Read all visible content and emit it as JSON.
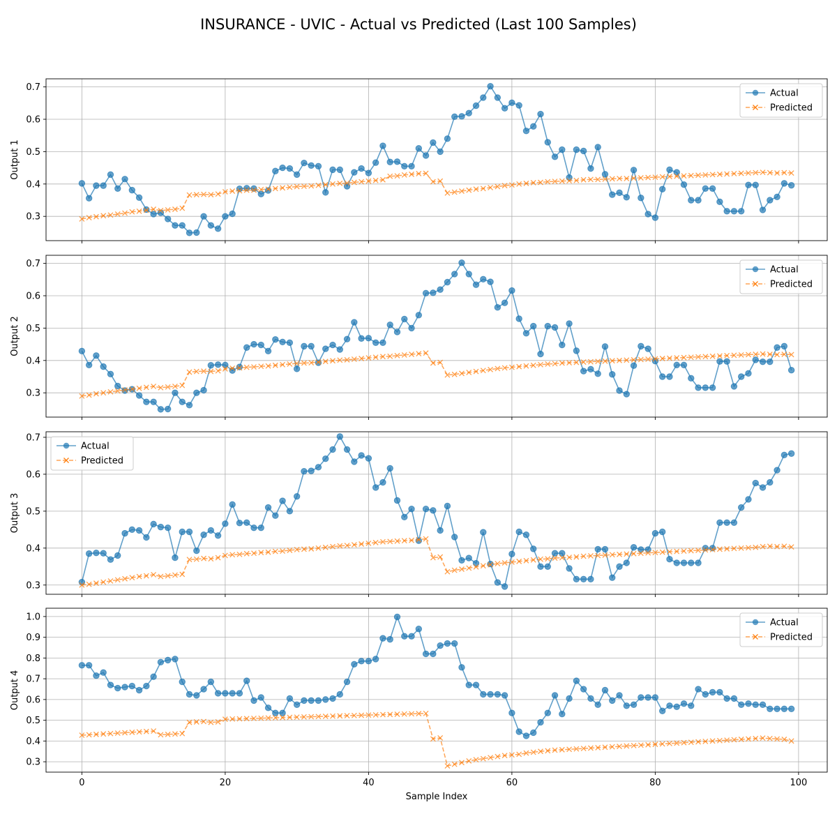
{
  "title": "INSURANCE - UVIC - Actual vs Predicted (Last 100 Samples)",
  "xlabel": "Sample Index",
  "colors": {
    "actual": "#1f77b4",
    "predicted": "#ff7f0e"
  },
  "chart_data": [
    {
      "type": "line",
      "ylabel": "Output 1",
      "xlim": [
        -5,
        104
      ],
      "ylim": [
        0.225,
        0.725
      ],
      "xticks": [
        0,
        20,
        40,
        60,
        80,
        100
      ],
      "yticks": [
        0.3,
        0.4,
        0.5,
        0.6,
        0.7
      ],
      "ytick_labels": [
        "0.3",
        "0.4",
        "0.5",
        "0.6",
        "0.7"
      ],
      "legend": "top-right",
      "series": [
        {
          "name": "Actual",
          "values": [
            0.402,
            0.356,
            0.395,
            0.395,
            0.429,
            0.386,
            0.415,
            0.381,
            0.358,
            0.321,
            0.307,
            0.311,
            0.292,
            0.272,
            0.272,
            0.249,
            0.25,
            0.3,
            0.272,
            0.262,
            0.3,
            0.308,
            0.385,
            0.387,
            0.386,
            0.369,
            0.38,
            0.44,
            0.45,
            0.448,
            0.429,
            0.465,
            0.457,
            0.455,
            0.374,
            0.444,
            0.444,
            0.393,
            0.436,
            0.448,
            0.434,
            0.466,
            0.518,
            0.468,
            0.469,
            0.455,
            0.455,
            0.51,
            0.488,
            0.528,
            0.5,
            0.54,
            0.608,
            0.609,
            0.619,
            0.642,
            0.667,
            0.702,
            0.667,
            0.634,
            0.651,
            0.643,
            0.564,
            0.578,
            0.616,
            0.529,
            0.484,
            0.506,
            0.42,
            0.506,
            0.502,
            0.448,
            0.514,
            0.43,
            0.367,
            0.373,
            0.359,
            0.443,
            0.357,
            0.307,
            0.296,
            0.384,
            0.444,
            0.436,
            0.398,
            0.35,
            0.35,
            0.386,
            0.386,
            0.345,
            0.316,
            0.316,
            0.316,
            0.397,
            0.397,
            0.32,
            0.35,
            0.36,
            0.402,
            0.396
          ]
        },
        {
          "name": "Predicted",
          "values": [
            0.292,
            0.296,
            0.299,
            0.302,
            0.304,
            0.307,
            0.31,
            0.314,
            0.316,
            0.319,
            0.322,
            0.318,
            0.32,
            0.322,
            0.325,
            0.366,
            0.367,
            0.368,
            0.367,
            0.369,
            0.376,
            0.378,
            0.379,
            0.381,
            0.381,
            0.383,
            0.384,
            0.386,
            0.388,
            0.39,
            0.392,
            0.393,
            0.394,
            0.396,
            0.398,
            0.4,
            0.402,
            0.403,
            0.405,
            0.407,
            0.409,
            0.411,
            0.413,
            0.424,
            0.425,
            0.428,
            0.43,
            0.432,
            0.433,
            0.407,
            0.409,
            0.372,
            0.375,
            0.378,
            0.381,
            0.384,
            0.386,
            0.389,
            0.392,
            0.395,
            0.397,
            0.4,
            0.402,
            0.404,
            0.405,
            0.407,
            0.408,
            0.409,
            0.41,
            0.411,
            0.413,
            0.414,
            0.414,
            0.415,
            0.416,
            0.417,
            0.417,
            0.418,
            0.419,
            0.42,
            0.421,
            0.422,
            0.423,
            0.424,
            0.425,
            0.426,
            0.427,
            0.428,
            0.429,
            0.43,
            0.431,
            0.432,
            0.433,
            0.434,
            0.435,
            0.436,
            0.435,
            0.434,
            0.435,
            0.434
          ]
        }
      ]
    },
    {
      "type": "line",
      "ylabel": "Output 2",
      "xlim": [
        -5,
        104
      ],
      "ylim": [
        0.225,
        0.725
      ],
      "xticks": [
        0,
        20,
        40,
        60,
        80,
        100
      ],
      "yticks": [
        0.3,
        0.4,
        0.5,
        0.6,
        0.7
      ],
      "ytick_labels": [
        "0.3",
        "0.4",
        "0.5",
        "0.6",
        "0.7"
      ],
      "legend": "top-right",
      "series": [
        {
          "name": "Actual",
          "values": [
            0.429,
            0.386,
            0.415,
            0.381,
            0.358,
            0.321,
            0.307,
            0.311,
            0.292,
            0.272,
            0.272,
            0.249,
            0.25,
            0.3,
            0.272,
            0.262,
            0.3,
            0.308,
            0.385,
            0.387,
            0.386,
            0.369,
            0.38,
            0.44,
            0.45,
            0.448,
            0.429,
            0.465,
            0.457,
            0.455,
            0.374,
            0.444,
            0.444,
            0.393,
            0.436,
            0.448,
            0.434,
            0.466,
            0.518,
            0.468,
            0.469,
            0.455,
            0.455,
            0.51,
            0.488,
            0.528,
            0.5,
            0.54,
            0.608,
            0.609,
            0.619,
            0.642,
            0.667,
            0.702,
            0.667,
            0.634,
            0.651,
            0.643,
            0.564,
            0.578,
            0.616,
            0.529,
            0.484,
            0.506,
            0.42,
            0.506,
            0.502,
            0.448,
            0.514,
            0.43,
            0.367,
            0.373,
            0.359,
            0.443,
            0.357,
            0.307,
            0.296,
            0.384,
            0.444,
            0.436,
            0.398,
            0.35,
            0.35,
            0.386,
            0.386,
            0.345,
            0.316,
            0.316,
            0.316,
            0.397,
            0.397,
            0.32,
            0.35,
            0.36,
            0.402,
            0.396,
            0.396,
            0.44,
            0.444,
            0.37
          ]
        },
        {
          "name": "Predicted",
          "values": [
            0.29,
            0.293,
            0.297,
            0.3,
            0.303,
            0.306,
            0.309,
            0.311,
            0.314,
            0.317,
            0.32,
            0.316,
            0.318,
            0.32,
            0.323,
            0.364,
            0.366,
            0.367,
            0.366,
            0.368,
            0.374,
            0.376,
            0.377,
            0.379,
            0.38,
            0.382,
            0.383,
            0.385,
            0.387,
            0.389,
            0.391,
            0.392,
            0.393,
            0.395,
            0.397,
            0.399,
            0.401,
            0.402,
            0.404,
            0.406,
            0.408,
            0.41,
            0.412,
            0.413,
            0.415,
            0.417,
            0.419,
            0.421,
            0.423,
            0.392,
            0.394,
            0.355,
            0.357,
            0.36,
            0.363,
            0.366,
            0.369,
            0.372,
            0.375,
            0.377,
            0.379,
            0.381,
            0.383,
            0.385,
            0.387,
            0.389,
            0.39,
            0.392,
            0.393,
            0.394,
            0.395,
            0.396,
            0.397,
            0.398,
            0.399,
            0.4,
            0.401,
            0.402,
            0.403,
            0.404,
            0.405,
            0.406,
            0.407,
            0.408,
            0.409,
            0.41,
            0.411,
            0.412,
            0.413,
            0.414,
            0.415,
            0.416,
            0.417,
            0.418,
            0.419,
            0.42,
            0.419,
            0.418,
            0.419,
            0.418
          ]
        }
      ]
    },
    {
      "type": "line",
      "ylabel": "Output 3",
      "xlim": [
        -5,
        104
      ],
      "ylim": [
        0.275,
        0.715
      ],
      "xticks": [
        0,
        20,
        40,
        60,
        80,
        100
      ],
      "yticks": [
        0.3,
        0.4,
        0.5,
        0.6,
        0.7
      ],
      "ytick_labels": [
        "0.3",
        "0.4",
        "0.5",
        "0.6",
        "0.7"
      ],
      "legend": "top-left",
      "series": [
        {
          "name": "Actual",
          "values": [
            0.308,
            0.385,
            0.387,
            0.386,
            0.369,
            0.38,
            0.44,
            0.45,
            0.448,
            0.429,
            0.465,
            0.457,
            0.455,
            0.374,
            0.444,
            0.444,
            0.393,
            0.436,
            0.448,
            0.434,
            0.466,
            0.518,
            0.468,
            0.469,
            0.455,
            0.455,
            0.51,
            0.488,
            0.528,
            0.5,
            0.54,
            0.608,
            0.609,
            0.619,
            0.642,
            0.667,
            0.702,
            0.667,
            0.634,
            0.651,
            0.643,
            0.564,
            0.578,
            0.616,
            0.529,
            0.484,
            0.506,
            0.42,
            0.506,
            0.502,
            0.448,
            0.514,
            0.43,
            0.367,
            0.373,
            0.359,
            0.443,
            0.357,
            0.307,
            0.296,
            0.384,
            0.444,
            0.436,
            0.398,
            0.35,
            0.35,
            0.386,
            0.386,
            0.345,
            0.316,
            0.316,
            0.316,
            0.397,
            0.397,
            0.32,
            0.35,
            0.36,
            0.402,
            0.396,
            0.396,
            0.44,
            0.444,
            0.37,
            0.36,
            0.36,
            0.36,
            0.36,
            0.4,
            0.4,
            0.469,
            0.469,
            0.469,
            0.51,
            0.532,
            0.576,
            0.564,
            0.578,
            0.611,
            0.652,
            0.656
          ]
        },
        {
          "name": "Predicted",
          "values": [
            0.3,
            0.302,
            0.305,
            0.308,
            0.311,
            0.314,
            0.317,
            0.32,
            0.323,
            0.325,
            0.328,
            0.323,
            0.325,
            0.327,
            0.329,
            0.369,
            0.37,
            0.372,
            0.371,
            0.374,
            0.38,
            0.382,
            0.383,
            0.385,
            0.386,
            0.388,
            0.389,
            0.391,
            0.392,
            0.394,
            0.396,
            0.397,
            0.398,
            0.4,
            0.402,
            0.404,
            0.406,
            0.407,
            0.409,
            0.411,
            0.413,
            0.415,
            0.417,
            0.418,
            0.419,
            0.42,
            0.421,
            0.423,
            0.425,
            0.374,
            0.376,
            0.336,
            0.34,
            0.343,
            0.346,
            0.349,
            0.352,
            0.355,
            0.358,
            0.36,
            0.362,
            0.364,
            0.366,
            0.368,
            0.37,
            0.371,
            0.373,
            0.374,
            0.375,
            0.376,
            0.378,
            0.379,
            0.38,
            0.381,
            0.382,
            0.383,
            0.384,
            0.385,
            0.386,
            0.387,
            0.388,
            0.389,
            0.39,
            0.391,
            0.392,
            0.393,
            0.394,
            0.395,
            0.396,
            0.397,
            0.398,
            0.399,
            0.4,
            0.401,
            0.402,
            0.404,
            0.405,
            0.404,
            0.405,
            0.403
          ]
        }
      ]
    },
    {
      "type": "line",
      "ylabel": "Output 4",
      "xlim": [
        -5,
        104
      ],
      "ylim": [
        0.25,
        1.04
      ],
      "xticks": [
        0,
        20,
        40,
        60,
        80,
        100
      ],
      "xtick_labels": [
        "0",
        "20",
        "40",
        "60",
        "80",
        "100"
      ],
      "yticks": [
        0.3,
        0.4,
        0.5,
        0.6,
        0.7,
        0.8,
        0.9,
        1.0
      ],
      "ytick_labels": [
        "0.3",
        "0.4",
        "0.5",
        "0.6",
        "0.7",
        "0.8",
        "0.9",
        "1.0"
      ],
      "legend": "top-right",
      "series": [
        {
          "name": "Actual",
          "values": [
            0.765,
            0.765,
            0.715,
            0.73,
            0.67,
            0.655,
            0.66,
            0.665,
            0.645,
            0.665,
            0.71,
            0.78,
            0.79,
            0.795,
            0.685,
            0.625,
            0.62,
            0.65,
            0.685,
            0.63,
            0.63,
            0.63,
            0.63,
            0.69,
            0.595,
            0.61,
            0.56,
            0.535,
            0.535,
            0.605,
            0.575,
            0.595,
            0.595,
            0.595,
            0.6,
            0.605,
            0.625,
            0.685,
            0.77,
            0.785,
            0.785,
            0.795,
            0.895,
            0.89,
            0.998,
            0.905,
            0.905,
            0.94,
            0.82,
            0.82,
            0.86,
            0.87,
            0.87,
            0.755,
            0.67,
            0.67,
            0.625,
            0.625,
            0.625,
            0.62,
            0.535,
            0.445,
            0.425,
            0.44,
            0.49,
            0.535,
            0.62,
            0.53,
            0.605,
            0.69,
            0.65,
            0.605,
            0.575,
            0.645,
            0.595,
            0.62,
            0.57,
            0.575,
            0.61,
            0.61,
            0.61,
            0.545,
            0.57,
            0.565,
            0.58,
            0.57,
            0.65,
            0.625,
            0.635,
            0.635,
            0.605,
            0.605,
            0.575,
            0.58,
            0.575,
            0.575,
            0.555,
            0.555,
            0.555,
            0.555
          ]
        },
        {
          "name": "Predicted",
          "values": [
            0.428,
            0.43,
            0.432,
            0.434,
            0.436,
            0.438,
            0.44,
            0.442,
            0.444,
            0.446,
            0.448,
            0.43,
            0.432,
            0.434,
            0.436,
            0.49,
            0.492,
            0.494,
            0.49,
            0.492,
            0.505,
            0.506,
            0.507,
            0.508,
            0.509,
            0.51,
            0.511,
            0.512,
            0.513,
            0.514,
            0.515,
            0.516,
            0.517,
            0.518,
            0.519,
            0.52,
            0.521,
            0.522,
            0.523,
            0.524,
            0.525,
            0.526,
            0.527,
            0.528,
            0.529,
            0.53,
            0.531,
            0.532,
            0.533,
            0.41,
            0.415,
            0.28,
            0.288,
            0.296,
            0.304,
            0.31,
            0.315,
            0.32,
            0.325,
            0.33,
            0.333,
            0.336,
            0.342,
            0.346,
            0.35,
            0.353,
            0.356,
            0.358,
            0.36,
            0.362,
            0.364,
            0.366,
            0.368,
            0.37,
            0.372,
            0.374,
            0.376,
            0.378,
            0.38,
            0.382,
            0.384,
            0.386,
            0.388,
            0.39,
            0.392,
            0.394,
            0.396,
            0.398,
            0.4,
            0.402,
            0.404,
            0.406,
            0.408,
            0.41,
            0.412,
            0.414,
            0.412,
            0.41,
            0.408,
            0.4
          ]
        }
      ]
    }
  ]
}
